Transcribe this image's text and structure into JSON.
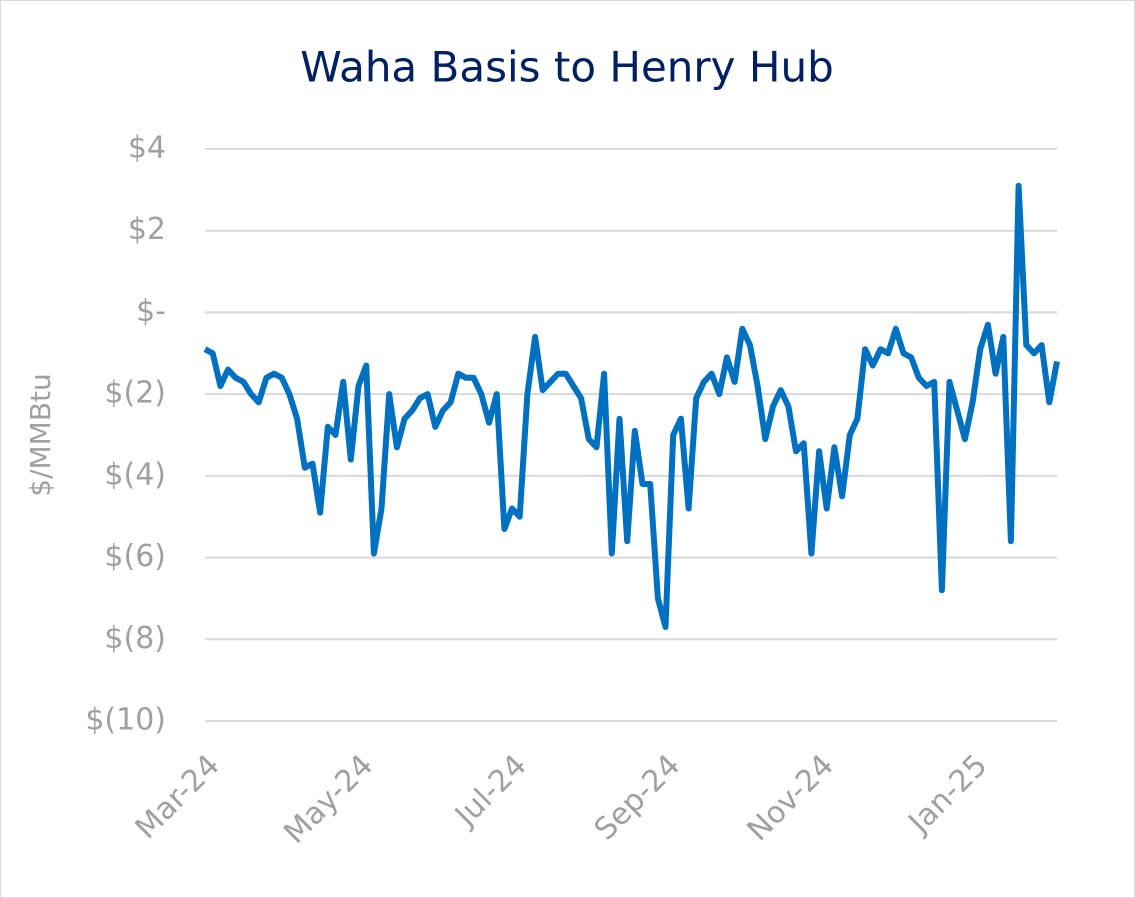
{
  "chart_data": {
    "type": "line",
    "title": "Waha Basis to Henry Hub",
    "y_label": "$/MMBtu",
    "categories": [
      "Mar-24",
      null,
      null,
      null,
      null,
      null,
      null,
      null,
      null,
      null,
      null,
      null,
      null,
      null,
      null,
      null,
      null,
      null,
      null,
      null,
      "May-24",
      null,
      null,
      null,
      null,
      null,
      null,
      null,
      null,
      null,
      null,
      null,
      null,
      null,
      null,
      null,
      null,
      null,
      null,
      null,
      "Jul-24",
      null,
      null,
      null,
      null,
      null,
      null,
      null,
      null,
      null,
      null,
      null,
      null,
      null,
      null,
      null,
      null,
      null,
      null,
      null,
      "Sep-24",
      null,
      null,
      null,
      null,
      null,
      null,
      null,
      null,
      null,
      null,
      null,
      null,
      null,
      null,
      null,
      null,
      null,
      null,
      null,
      "Nov-24",
      null,
      null,
      null,
      null,
      null,
      null,
      null,
      null,
      null,
      null,
      null,
      null,
      null,
      null,
      null,
      null,
      null,
      null,
      null,
      "Jan-25",
      null,
      null,
      null,
      null,
      null,
      null,
      null,
      null,
      null,
      null,
      null
    ],
    "series": [
      {
        "name": "Waha Basis",
        "color": "#0070c0",
        "values": [
          -0.9,
          -1.0,
          -1.8,
          -1.4,
          -1.6,
          -1.7,
          -2.0,
          -2.2,
          -1.6,
          -1.5,
          -1.6,
          -2.0,
          -2.6,
          -3.8,
          -3.7,
          -4.9,
          -2.8,
          -3.0,
          -1.7,
          -3.6,
          -1.8,
          -1.3,
          -5.9,
          -4.8,
          -2.0,
          -3.3,
          -2.6,
          -2.4,
          -2.1,
          -2.0,
          -2.8,
          -2.4,
          -2.2,
          -1.5,
          -1.6,
          -1.6,
          -2.0,
          -2.7,
          -2.0,
          -5.3,
          -4.8,
          -5.0,
          -2.0,
          -0.6,
          -1.9,
          -1.7,
          -1.5,
          -1.5,
          -1.8,
          -2.1,
          -3.1,
          -3.3,
          -1.5,
          -5.9,
          -2.6,
          -5.6,
          -2.9,
          -4.2,
          -4.2,
          -7.0,
          -7.7,
          -3.0,
          -2.6,
          -4.8,
          -2.1,
          -1.7,
          -1.5,
          -2.0,
          -1.1,
          -1.7,
          -0.4,
          -0.8,
          -1.8,
          -3.1,
          -2.3,
          -1.9,
          -2.3,
          -3.4,
          -3.2,
          -5.9,
          -3.4,
          -4.8,
          -3.3,
          -4.5,
          -3.0,
          -2.6,
          -0.9,
          -1.3,
          -0.9,
          -1.0,
          -0.4,
          -1.0,
          -1.1,
          -1.6,
          -1.8,
          -1.7,
          -6.8,
          -1.7,
          -2.4,
          -3.1,
          -2.2,
          -0.9,
          -0.3,
          -1.5,
          -0.6,
          -5.6,
          3.1,
          -0.8,
          -1.0,
          -0.8,
          -2.2,
          -1.2
        ]
      }
    ],
    "ylim": [
      -10,
      4
    ],
    "yticks": [
      {
        "value": -10,
        "label": "$(10)"
      },
      {
        "value": -8,
        "label": "$(8)"
      },
      {
        "value": -6,
        "label": "$(6)"
      },
      {
        "value": -4,
        "label": "$(4)"
      },
      {
        "value": -2,
        "label": "$(2)"
      },
      {
        "value": 0,
        "label": "$-"
      },
      {
        "value": 2,
        "label": "$2"
      },
      {
        "value": 4,
        "label": "$4"
      }
    ],
    "grid": true
  }
}
